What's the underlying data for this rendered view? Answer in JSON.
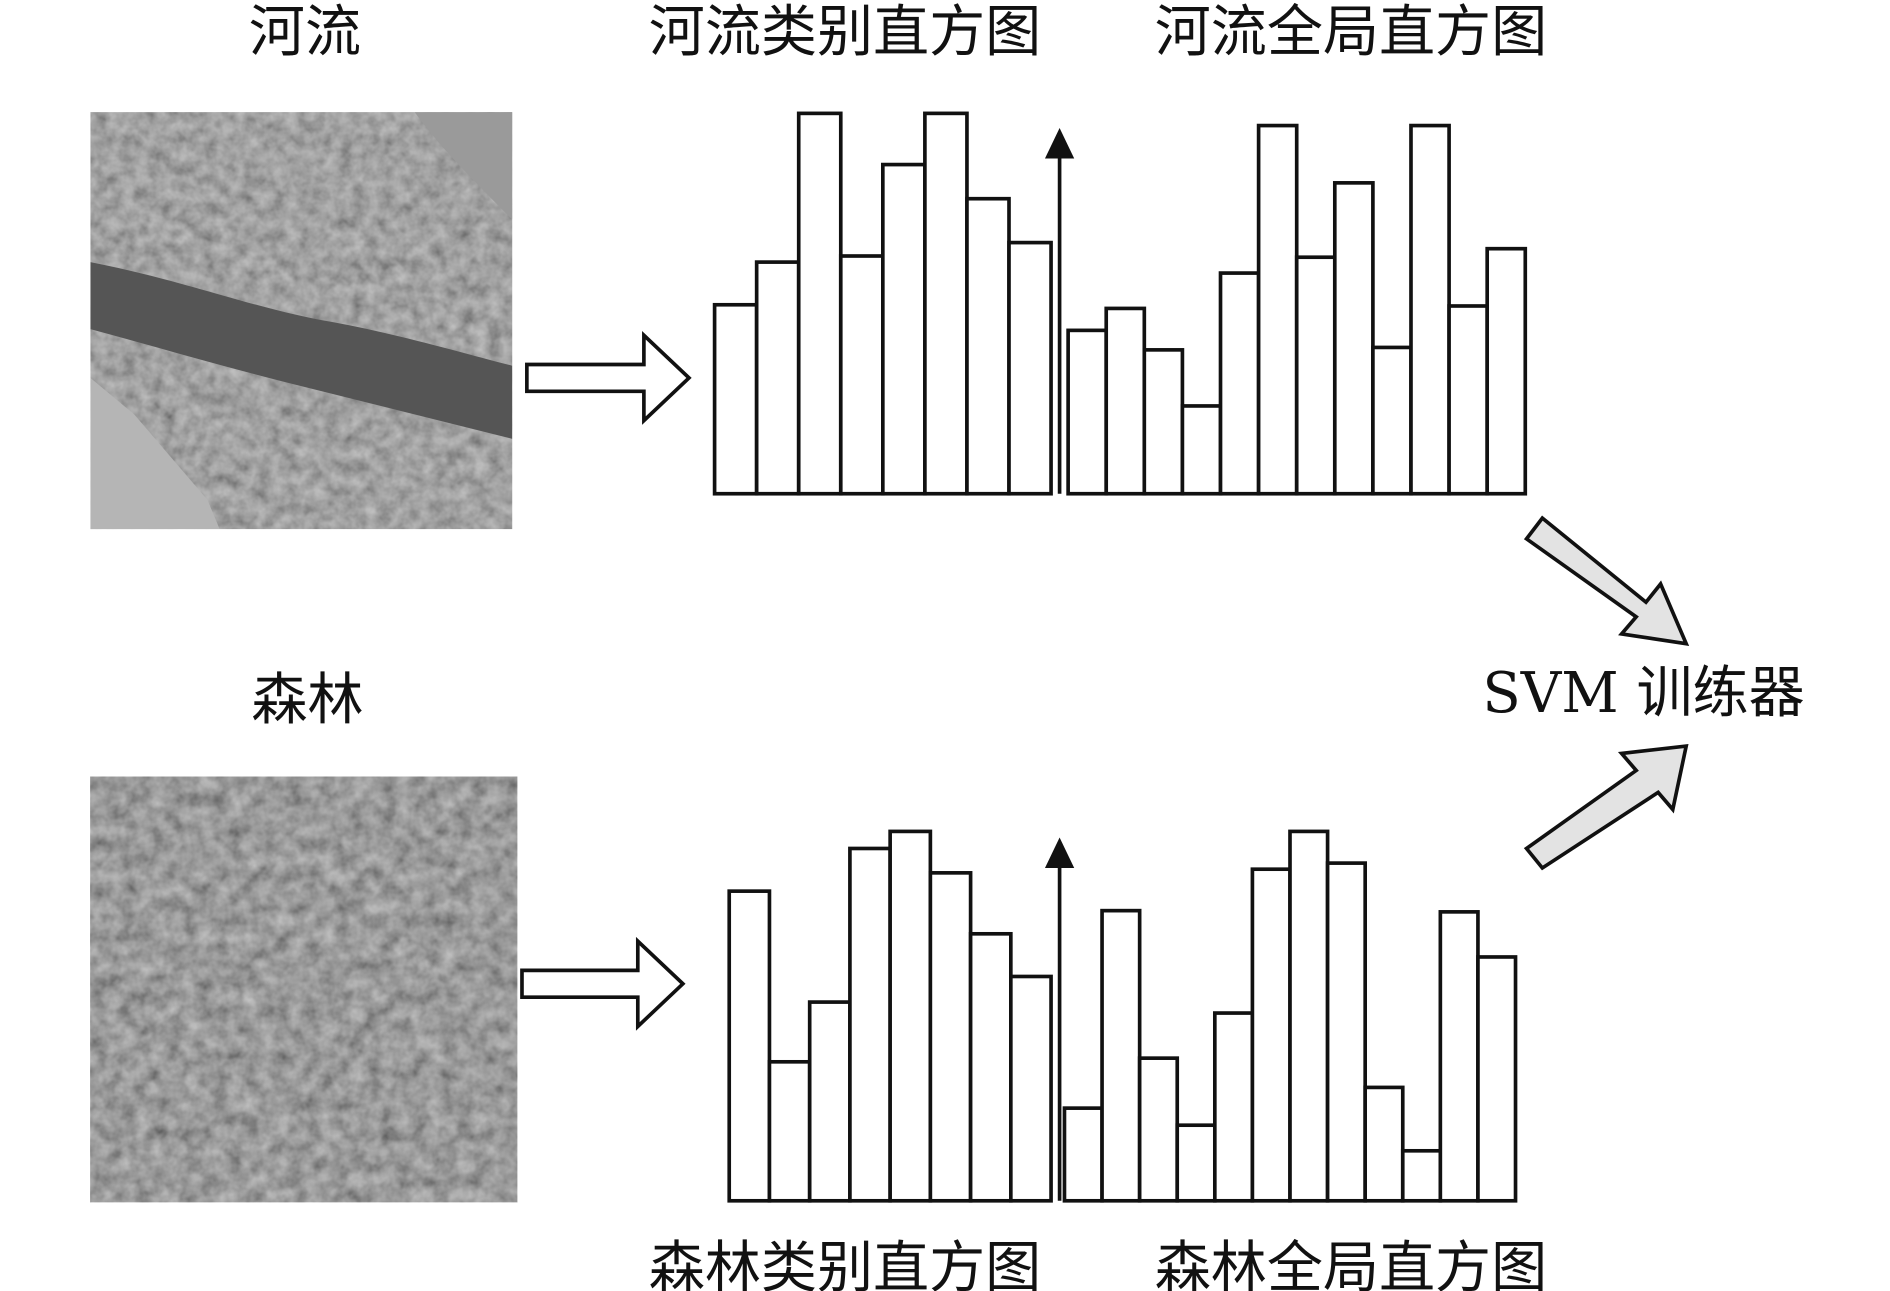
{
  "river": {
    "label": "河流",
    "class_histogram": "河流类别直方图",
    "global_histogram": "河流全局直方图"
  },
  "forest": {
    "label": "森林",
    "class_histogram": "森林类别直方图",
    "global_histogram": "森林全局直方图"
  },
  "classifier": {
    "label": "SVM 训练器"
  }
}
